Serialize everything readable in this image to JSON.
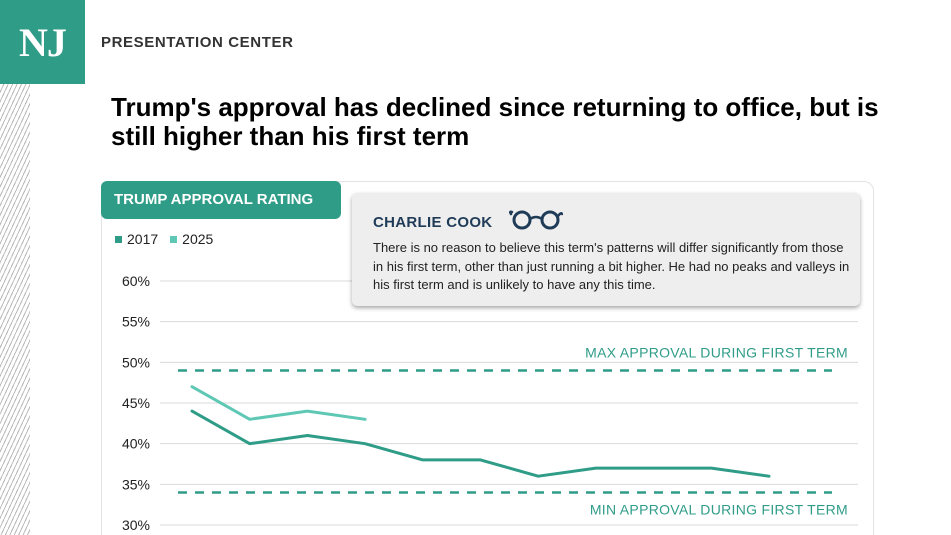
{
  "header": {
    "logo_text": "NJ",
    "brand_label": "PRESENTATION CENTER",
    "headline": "Trump's approval has declined since returning to office, but is still higher than his first term"
  },
  "chart_tab": "TRUMP APPROVAL RATING",
  "callout": {
    "author": "CHARLIE COOK",
    "icon": "glasses-icon",
    "text": "There is no reason to believe this term's patterns will differ significantly from those in his first term, other than just running a bit higher. He had no peaks and valleys in his first term and is unlikely to have any this time."
  },
  "colors": {
    "brand": "#2f9c88",
    "series_2017": "#2f9c88",
    "series_2025": "#5ec8b4",
    "callout_name": "#1f3b57",
    "gridline": "#d9d9d9"
  },
  "chart_data": {
    "type": "line",
    "title": "",
    "xlabel": "",
    "ylabel": "",
    "ylim": [
      30,
      60
    ],
    "yticks": [
      "30%",
      "35%",
      "40%",
      "45%",
      "50%",
      "55%",
      "60%"
    ],
    "ytick_values": [
      30,
      35,
      40,
      45,
      50,
      55,
      60
    ],
    "grid": true,
    "legend_position": "top-left",
    "point_count": 13,
    "series": [
      {
        "name": "2017",
        "color": "#2f9c88",
        "values": [
          44,
          40,
          41,
          40,
          38,
          38,
          36,
          37,
          37,
          37,
          36
        ]
      },
      {
        "name": "2025",
        "color": "#5ec8b4",
        "values": [
          47,
          43,
          44,
          43
        ]
      }
    ],
    "reference_lines": [
      {
        "label": "MAX APPROVAL DURING FIRST TERM",
        "value": 49
      },
      {
        "label": "MIN APPROVAL DURING FIRST TERM",
        "value": 34
      }
    ]
  }
}
